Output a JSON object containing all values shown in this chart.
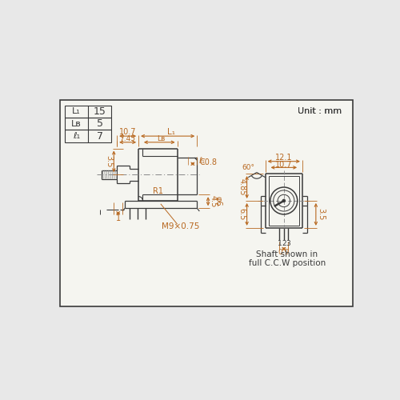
{
  "bg_outer": "#e8e8e8",
  "bg_inner": "#f5f5f0",
  "lc": "#3a3a3a",
  "dc": "#b86820",
  "tc": "#3a3a3a",
  "title": "Unit : mm",
  "table_labels": [
    "L₁",
    "Lʙ",
    "ℓ₁"
  ],
  "table_vals": [
    "15",
    "5",
    "7"
  ],
  "note": "Shaft shown in\nfull C.C.W position",
  "border": [
    15,
    85,
    490,
    420
  ]
}
